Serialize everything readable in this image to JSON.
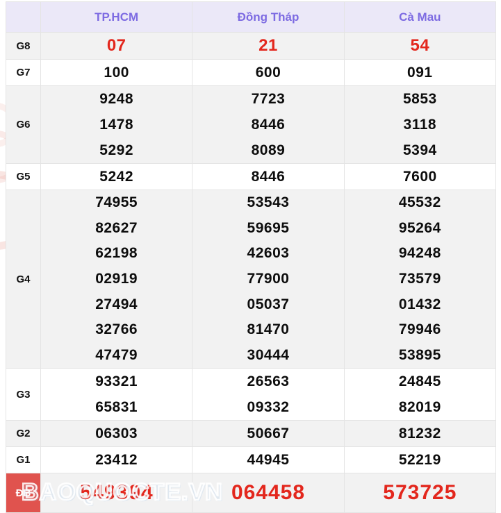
{
  "header": {
    "corner": "",
    "columns": [
      "TP.HCM",
      "Đồng Tháp",
      "Cà Mau"
    ]
  },
  "prizes": [
    {
      "label": "G8",
      "style": "red",
      "cells": [
        [
          "07"
        ],
        [
          "21"
        ],
        [
          "54"
        ]
      ]
    },
    {
      "label": "G7",
      "style": "normal",
      "cells": [
        [
          "100"
        ],
        [
          "600"
        ],
        [
          "091"
        ]
      ]
    },
    {
      "label": "G6",
      "style": "normal",
      "cells": [
        [
          "9248",
          "1478",
          "5292"
        ],
        [
          "7723",
          "8446",
          "8089"
        ],
        [
          "5853",
          "3118",
          "5394"
        ]
      ]
    },
    {
      "label": "G5",
      "style": "normal",
      "cells": [
        [
          "5242"
        ],
        [
          "8446"
        ],
        [
          "7600"
        ]
      ]
    },
    {
      "label": "G4",
      "style": "normal",
      "cells": [
        [
          "74955",
          "82627",
          "62198",
          "02919",
          "27494",
          "32766",
          "47479"
        ],
        [
          "53543",
          "59695",
          "42603",
          "77900",
          "05037",
          "81470",
          "30444"
        ],
        [
          "45532",
          "95264",
          "94248",
          "73579",
          "01432",
          "79946",
          "53895"
        ]
      ]
    },
    {
      "label": "G3",
      "style": "normal",
      "cells": [
        [
          "93321",
          "65831"
        ],
        [
          "26563",
          "09332"
        ],
        [
          "24845",
          "82019"
        ]
      ]
    },
    {
      "label": "G2",
      "style": "normal",
      "cells": [
        [
          "06303"
        ],
        [
          "50667"
        ],
        [
          "81232"
        ]
      ]
    },
    {
      "label": "G1",
      "style": "normal",
      "cells": [
        [
          "23412"
        ],
        [
          "44945"
        ],
        [
          "52219"
        ]
      ]
    },
    {
      "label": "ĐB",
      "style": "special",
      "cells": [
        [
          "549394"
        ],
        [
          "064458"
        ],
        [
          "573725"
        ]
      ]
    }
  ],
  "watermark": "BAOQUOCTE.VN",
  "colors": {
    "accent_purple": "#7d6be2",
    "red_number": "#e3271d",
    "db_label_bg": "#e0534e",
    "header_bg": "#ebe8f8",
    "alt_row_bg": "#f2f2f2",
    "border": "#e4e4e4"
  }
}
